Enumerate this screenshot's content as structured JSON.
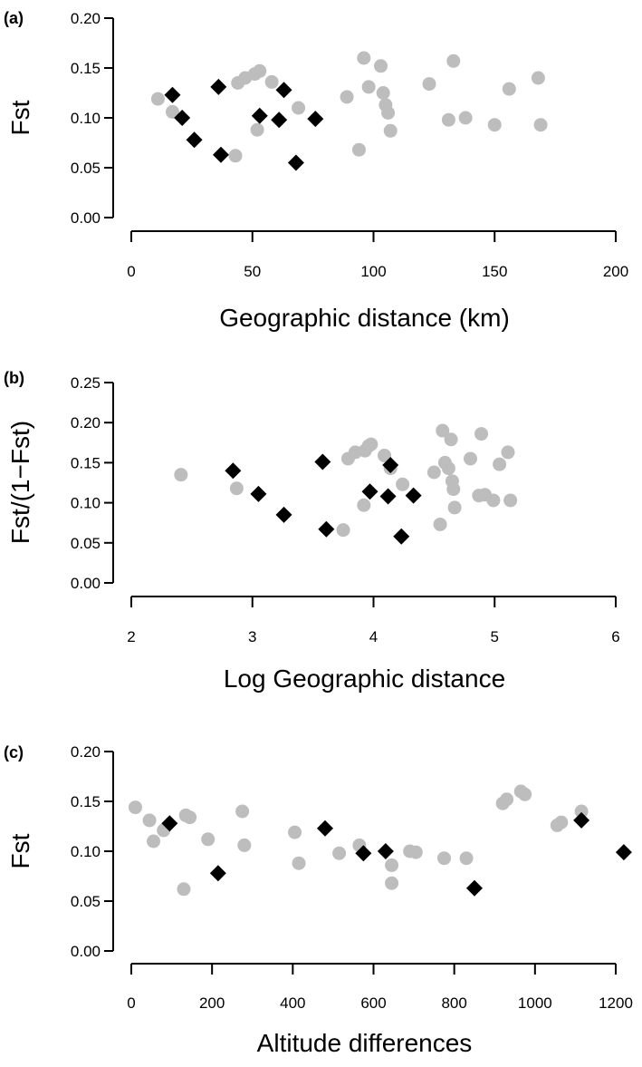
{
  "colors": {
    "population_marker": "#000000",
    "other_marker": "#bdbdbd"
  },
  "chart_data": [
    {
      "type": "scatter",
      "panel": "(a)",
      "xlabel": "Geographic distance (km)",
      "ylabel": "Fst",
      "xlim": [
        0,
        200
      ],
      "ylim": [
        0,
        0.2
      ],
      "xticks": [
        0,
        50,
        100,
        150,
        200
      ],
      "yticks": [
        "0.00",
        "0.05",
        "0.10",
        "0.15",
        "0.20"
      ],
      "series": [
        {
          "marker": "circle",
          "color": "#bdbdbd",
          "points": [
            [
              11,
              0.119
            ],
            [
              17,
              0.106
            ],
            [
              43,
              0.062
            ],
            [
              44,
              0.135
            ],
            [
              47,
              0.14
            ],
            [
              51,
              0.144
            ],
            [
              52,
              0.088
            ],
            [
              53,
              0.147
            ],
            [
              58,
              0.136
            ],
            [
              69,
              0.11
            ],
            [
              89,
              0.121
            ],
            [
              94,
              0.068
            ],
            [
              96,
              0.16
            ],
            [
              98,
              0.131
            ],
            [
              103,
              0.152
            ],
            [
              104,
              0.125
            ],
            [
              105,
              0.113
            ],
            [
              106,
              0.105
            ],
            [
              107,
              0.087
            ],
            [
              123,
              0.134
            ],
            [
              131,
              0.098
            ],
            [
              133,
              0.157
            ],
            [
              138,
              0.1
            ],
            [
              150,
              0.093
            ],
            [
              156,
              0.129
            ],
            [
              168,
              0.14
            ],
            [
              169,
              0.093
            ]
          ]
        },
        {
          "marker": "diamond",
          "color": "#000000",
          "points": [
            [
              17,
              0.123
            ],
            [
              21,
              0.1
            ],
            [
              26,
              0.078
            ],
            [
              36,
              0.131
            ],
            [
              37,
              0.063
            ],
            [
              53,
              0.102
            ],
            [
              61,
              0.098
            ],
            [
              63,
              0.128
            ],
            [
              68,
              0.055
            ],
            [
              76,
              0.099
            ]
          ]
        }
      ]
    },
    {
      "type": "scatter",
      "panel": "(b)",
      "xlabel": "Log Geographic distance",
      "ylabel": "Fst/(1−Fst)",
      "xlim": [
        2,
        6
      ],
      "ylim": [
        0,
        0.25
      ],
      "xticks": [
        2,
        3,
        4,
        5,
        6
      ],
      "yticks": [
        "0.00",
        "0.05",
        "0.10",
        "0.15",
        "0.20",
        "0.25"
      ],
      "series": [
        {
          "marker": "circle",
          "color": "#bdbdbd",
          "points": [
            [
              2.41,
              0.135
            ],
            [
              2.87,
              0.118
            ],
            [
              3.75,
              0.066
            ],
            [
              3.79,
              0.155
            ],
            [
              3.85,
              0.163
            ],
            [
              3.92,
              0.097
            ],
            [
              3.93,
              0.165
            ],
            [
              3.96,
              0.171
            ],
            [
              3.98,
              0.173
            ],
            [
              4.09,
              0.159
            ],
            [
              4.14,
              0.143
            ],
            [
              4.24,
              0.123
            ],
            [
              4.5,
              0.138
            ],
            [
              4.55,
              0.073
            ],
            [
              4.57,
              0.19
            ],
            [
              4.59,
              0.15
            ],
            [
              4.62,
              0.143
            ],
            [
              4.64,
              0.179
            ],
            [
              4.65,
              0.127
            ],
            [
              4.66,
              0.117
            ],
            [
              4.67,
              0.094
            ],
            [
              4.8,
              0.155
            ],
            [
              4.87,
              0.109
            ],
            [
              4.89,
              0.186
            ],
            [
              4.92,
              0.11
            ],
            [
              4.99,
              0.103
            ],
            [
              5.04,
              0.148
            ],
            [
              5.11,
              0.163
            ],
            [
              5.13,
              0.103
            ]
          ]
        },
        {
          "marker": "diamond",
          "color": "#000000",
          "points": [
            [
              2.84,
              0.14
            ],
            [
              3.05,
              0.111
            ],
            [
              3.26,
              0.085
            ],
            [
              3.58,
              0.151
            ],
            [
              3.61,
              0.067
            ],
            [
              3.97,
              0.114
            ],
            [
              4.12,
              0.108
            ],
            [
              4.14,
              0.147
            ],
            [
              4.23,
              0.058
            ],
            [
              4.33,
              0.109
            ]
          ]
        }
      ]
    },
    {
      "type": "scatter",
      "panel": "(c)",
      "xlabel": "Altitude differences",
      "ylabel": "Fst",
      "xlim": [
        0,
        1200
      ],
      "ylim": [
        0,
        0.2
      ],
      "xticks": [
        0,
        200,
        400,
        600,
        800,
        1000,
        1200
      ],
      "yticks": [
        "0.00",
        "0.05",
        "0.10",
        "0.15",
        "0.20"
      ],
      "series": [
        {
          "marker": "circle",
          "color": "#bdbdbd",
          "points": [
            [
              10,
              0.144
            ],
            [
              45,
              0.131
            ],
            [
              55,
              0.11
            ],
            [
              80,
              0.121
            ],
            [
              130,
              0.062
            ],
            [
              135,
              0.136
            ],
            [
              145,
              0.134
            ],
            [
              190,
              0.112
            ],
            [
              275,
              0.14
            ],
            [
              280,
              0.106
            ],
            [
              405,
              0.119
            ],
            [
              415,
              0.088
            ],
            [
              515,
              0.098
            ],
            [
              565,
              0.106
            ],
            [
              645,
              0.086
            ],
            [
              645,
              0.068
            ],
            [
              690,
              0.1
            ],
            [
              705,
              0.099
            ],
            [
              775,
              0.093
            ],
            [
              830,
              0.093
            ],
            [
              920,
              0.148
            ],
            [
              930,
              0.152
            ],
            [
              965,
              0.16
            ],
            [
              975,
              0.157
            ],
            [
              1055,
              0.126
            ],
            [
              1065,
              0.129
            ],
            [
              1115,
              0.14
            ]
          ]
        },
        {
          "marker": "diamond",
          "color": "#000000",
          "points": [
            [
              95,
              0.128
            ],
            [
              215,
              0.078
            ],
            [
              480,
              0.123
            ],
            [
              575,
              0.098
            ],
            [
              630,
              0.1
            ],
            [
              850,
              0.063
            ],
            [
              1115,
              0.131
            ],
            [
              1220,
              0.099
            ]
          ]
        }
      ]
    }
  ]
}
